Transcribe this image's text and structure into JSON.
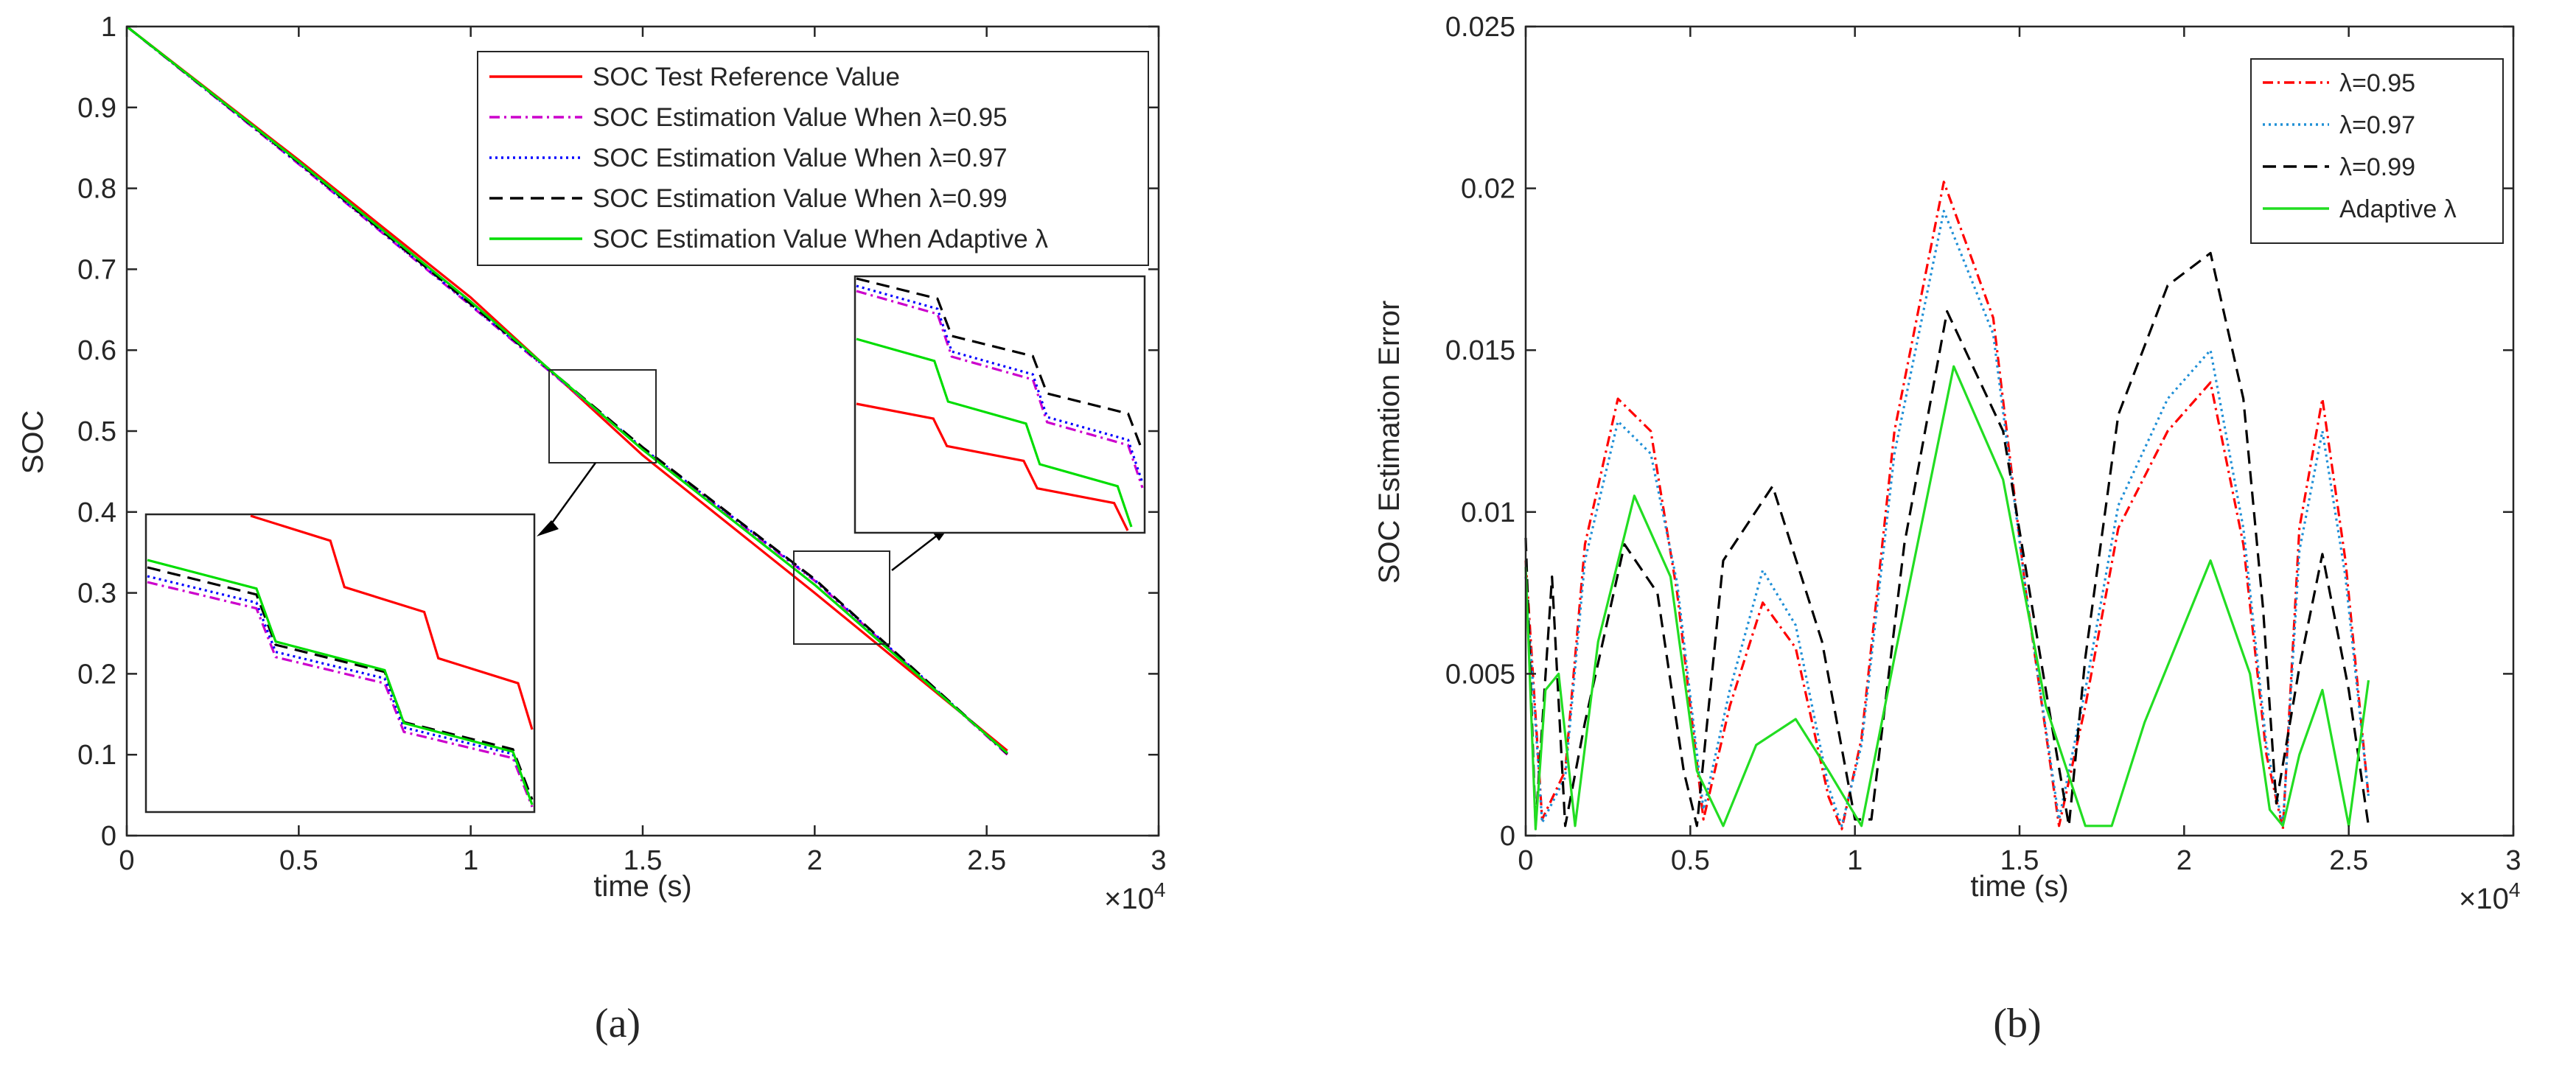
{
  "chart_data": [
    {
      "type": "line",
      "panel": "(a)",
      "caption": "(a)",
      "xlabel": "time (s)",
      "ylabel": "SOC",
      "xlim": [
        0,
        3
      ],
      "ylim": [
        0,
        1
      ],
      "x_exponent_label": "×10",
      "x_exponent_power": "4",
      "xticks": [
        0,
        0.5,
        1,
        1.5,
        2,
        2.5,
        3
      ],
      "xtick_labels": [
        "0",
        "0.5",
        "1",
        "1.5",
        "2",
        "2.5",
        "3"
      ],
      "yticks": [
        0,
        0.1,
        0.2,
        0.3,
        0.4,
        0.5,
        0.6,
        0.7,
        0.8,
        0.9,
        1
      ],
      "ytick_labels": [
        "0",
        "0.1",
        "0.2",
        "0.3",
        "0.4",
        "0.5",
        "0.6",
        "0.7",
        "0.8",
        "0.9",
        "1"
      ],
      "legend_position": "top-right",
      "series": [
        {
          "name": "SOC Test Reference Value",
          "color": "#ff0000",
          "style": "solid",
          "x": [
            0,
            0.5,
            1,
            1.5,
            2,
            2.56
          ],
          "y": [
            1,
            0.835,
            0.665,
            0.47,
            0.3,
            0.105
          ]
        },
        {
          "name": "SOC Estimation Value When λ=0.95",
          "color": "#cc00cc",
          "style": "dashdot",
          "x": [
            0,
            0.5,
            1,
            1.5,
            2,
            2.56
          ],
          "y": [
            1,
            0.83,
            0.655,
            0.478,
            0.315,
            0.1
          ]
        },
        {
          "name": "SOC Estimation Value When λ=0.97",
          "color": "#0000ff",
          "style": "dotted",
          "x": [
            0,
            0.5,
            1,
            1.5,
            2,
            2.56
          ],
          "y": [
            1,
            0.831,
            0.656,
            0.479,
            0.316,
            0.101
          ]
        },
        {
          "name": "SOC Estimation Value When λ=0.99",
          "color": "#000000",
          "style": "dashed",
          "x": [
            0,
            0.5,
            1,
            1.5,
            2,
            2.56
          ],
          "y": [
            1,
            0.832,
            0.657,
            0.48,
            0.317,
            0.101
          ]
        },
        {
          "name": "SOC Estimation Value When Adaptive λ",
          "color": "#00dd00",
          "style": "solid",
          "x": [
            0,
            0.5,
            1,
            1.5,
            2,
            2.56
          ],
          "y": [
            1,
            0.833,
            0.66,
            0.477,
            0.31,
            0.102
          ]
        }
      ],
      "zoom_regions": [
        {
          "x_range": [
            1.23,
            1.53
          ],
          "y_range": [
            0.46,
            0.575
          ],
          "inset": "lower-left"
        },
        {
          "x_range": [
            1.94,
            2.23
          ],
          "y_range": [
            0.23,
            0.345
          ],
          "inset": "upper-right"
        }
      ]
    },
    {
      "type": "line",
      "panel": "(b)",
      "caption": "(b)",
      "xlabel": "time (s)",
      "ylabel": "SOC Estimation Error",
      "xlim": [
        0,
        3
      ],
      "ylim": [
        0,
        0.025
      ],
      "x_exponent_label": "×10",
      "x_exponent_power": "4",
      "xticks": [
        0,
        0.5,
        1,
        1.5,
        2,
        2.5,
        3
      ],
      "xtick_labels": [
        "0",
        "0.5",
        "1",
        "1.5",
        "2",
        "2.5",
        "3"
      ],
      "yticks": [
        0,
        0.005,
        0.01,
        0.015,
        0.02,
        0.025
      ],
      "ytick_labels": [
        "0",
        "0.005",
        "0.01",
        "0.015",
        "0.02",
        "0.025"
      ],
      "legend_position": "top-right",
      "series": [
        {
          "name": "λ=0.95",
          "color": "#ff0000",
          "style": "dashdot",
          "x": [
            0,
            0.05,
            0.12,
            0.18,
            0.28,
            0.38,
            0.46,
            0.54,
            0.62,
            0.72,
            0.82,
            0.92,
            0.96,
            1.02,
            1.12,
            1.27,
            1.42,
            1.52,
            1.62,
            1.7,
            1.8,
            1.95,
            2.08,
            2.18,
            2.25,
            2.3,
            2.35,
            2.42,
            2.49,
            2.56
          ],
          "y": [
            0.0085,
            0.0005,
            0.002,
            0.009,
            0.0135,
            0.0125,
            0.0075,
            0.0005,
            0.004,
            0.0072,
            0.0058,
            0.0012,
            0.0002,
            0.003,
            0.0125,
            0.0202,
            0.016,
            0.0075,
            0.0003,
            0.004,
            0.0095,
            0.0125,
            0.014,
            0.009,
            0.0025,
            0.0002,
            0.0095,
            0.0135,
            0.0085,
            0.0012
          ]
        },
        {
          "name": "λ=0.97",
          "color": "#1f8fd6",
          "style": "dotted",
          "x": [
            0,
            0.05,
            0.12,
            0.18,
            0.28,
            0.38,
            0.46,
            0.54,
            0.62,
            0.72,
            0.82,
            0.92,
            0.96,
            1.02,
            1.12,
            1.27,
            1.42,
            1.52,
            1.62,
            1.7,
            1.8,
            1.95,
            2.08,
            2.18,
            2.25,
            2.3,
            2.35,
            2.42,
            2.49,
            2.56
          ],
          "y": [
            0.008,
            0.0004,
            0.0018,
            0.0085,
            0.0128,
            0.0118,
            0.0078,
            0.0008,
            0.0045,
            0.0082,
            0.0065,
            0.0015,
            0.0003,
            0.0028,
            0.0118,
            0.0193,
            0.0155,
            0.0075,
            0.0005,
            0.0045,
            0.0102,
            0.0135,
            0.015,
            0.0095,
            0.0028,
            0.0003,
            0.0088,
            0.0125,
            0.008,
            0.0012
          ]
        },
        {
          "name": "λ=0.99",
          "color": "#000000",
          "style": "dashed",
          "x": [
            0,
            0.03,
            0.08,
            0.12,
            0.18,
            0.3,
            0.4,
            0.48,
            0.52,
            0.6,
            0.75,
            0.9,
            1.0,
            1.05,
            1.15,
            1.28,
            1.45,
            1.58,
            1.65,
            1.7,
            1.8,
            1.95,
            2.08,
            2.18,
            2.24,
            2.28,
            2.35,
            2.42,
            2.5,
            2.56
          ],
          "y": [
            0.0092,
            0.0003,
            0.008,
            0.0003,
            0.0035,
            0.009,
            0.0075,
            0.002,
            0.0003,
            0.0085,
            0.0108,
            0.006,
            0.0005,
            0.0005,
            0.009,
            0.0162,
            0.0125,
            0.0045,
            0.0003,
            0.0055,
            0.013,
            0.017,
            0.018,
            0.0135,
            0.007,
            0.001,
            0.0052,
            0.0087,
            0.0045,
            0.0003
          ]
        },
        {
          "name": "Adaptive λ",
          "color": "#22dd22",
          "style": "solid",
          "x": [
            0,
            0.03,
            0.06,
            0.1,
            0.15,
            0.22,
            0.33,
            0.44,
            0.52,
            0.6,
            0.7,
            0.82,
            0.92,
            1.02,
            1.12,
            1.3,
            1.45,
            1.58,
            1.7,
            1.78,
            1.88,
            2.08,
            2.2,
            2.26,
            2.3,
            2.35,
            2.42,
            2.5,
            2.56
          ],
          "y": [
            0.0083,
            0.0002,
            0.0045,
            0.005,
            0.0003,
            0.006,
            0.0105,
            0.008,
            0.002,
            0.0003,
            0.0028,
            0.0036,
            0.002,
            0.0003,
            0.0055,
            0.0145,
            0.011,
            0.004,
            0.0003,
            0.0003,
            0.0035,
            0.0085,
            0.005,
            0.0008,
            0.0003,
            0.0025,
            0.0045,
            0.0003,
            0.0048
          ]
        }
      ]
    }
  ]
}
